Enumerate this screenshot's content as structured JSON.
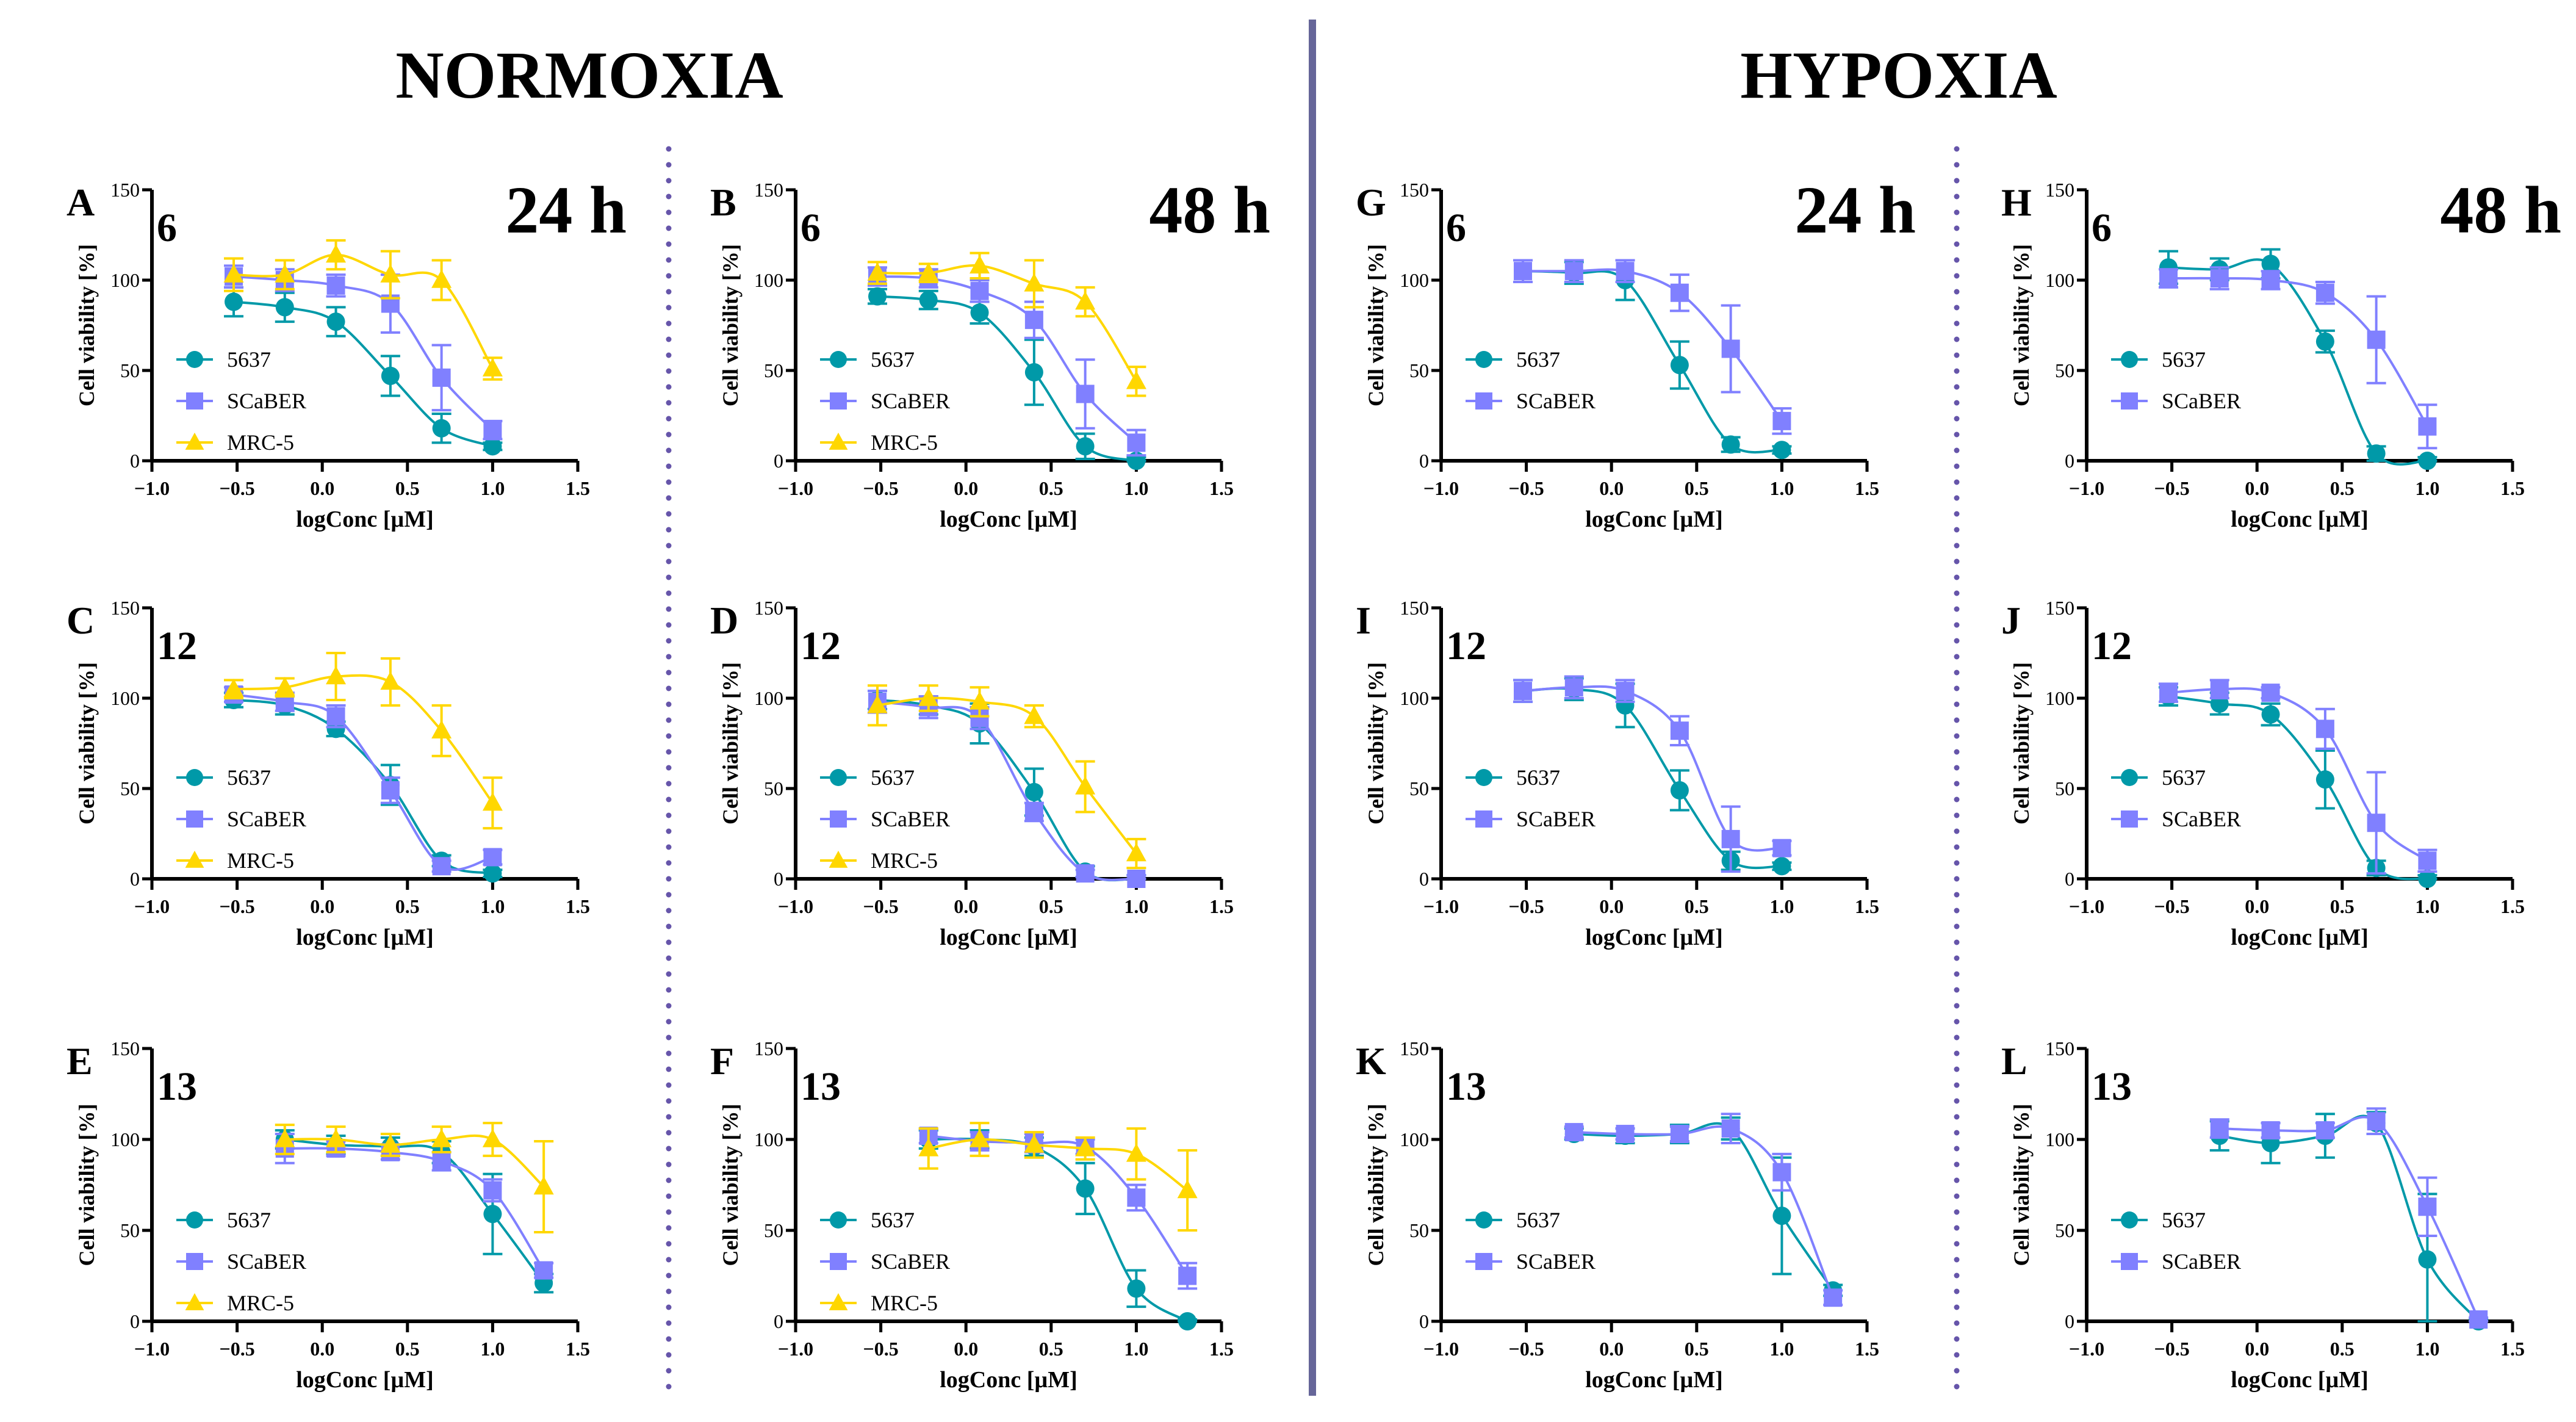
{
  "titles": {
    "normoxia": "NORMOXIA",
    "hypoxia": "HYPOXIA"
  },
  "colors": {
    "5637": "#0099A8",
    "SCaBER": "#8080FF",
    "MRC-5": "#FFD700",
    "separator": "#666699",
    "dots": "#6655AA"
  },
  "chart_data": [
    {
      "panel": "A",
      "compound": "6",
      "time": "24 h",
      "type": "line",
      "xlabel": "logConc [µM]",
      "ylabel": "Cell viability [%]",
      "xlim": [
        -1,
        1.5
      ],
      "ylim": [
        0,
        150
      ],
      "xticks": [
        "−1.0",
        "−0.5",
        "0.0",
        "0.5",
        "1.0",
        "1.5"
      ],
      "yticks": [
        "0",
        "50",
        "100",
        "150"
      ],
      "series": [
        {
          "name": "5637",
          "x": [
            -0.52,
            -0.22,
            0.08,
            0.4,
            0.7,
            1.0
          ],
          "y": [
            88,
            85,
            77,
            47,
            18,
            8
          ],
          "err": [
            8,
            8,
            8,
            11,
            8,
            2
          ]
        },
        {
          "name": "SCaBER",
          "x": [
            -0.52,
            -0.22,
            0.08,
            0.4,
            0.7,
            1.0
          ],
          "y": [
            102,
            100,
            97,
            87,
            46,
            17
          ],
          "err": [
            6,
            6,
            6,
            16,
            18,
            5
          ]
        },
        {
          "name": "MRC-5",
          "x": [
            -0.52,
            -0.22,
            0.08,
            0.4,
            0.7,
            1.0
          ],
          "y": [
            103,
            103,
            114,
            103,
            100,
            51
          ],
          "err": [
            9,
            8,
            8,
            13,
            11,
            6
          ]
        }
      ]
    },
    {
      "panel": "B",
      "compound": "6",
      "time": "48 h",
      "type": "line",
      "xlabel": "logConc [µM]",
      "ylabel": "Cell viability [%]",
      "xlim": [
        -1,
        1.5
      ],
      "ylim": [
        0,
        150
      ],
      "xticks": [
        "−1.0",
        "−0.5",
        "0.0",
        "0.5",
        "1.0",
        "1.5"
      ],
      "yticks": [
        "0",
        "50",
        "100",
        "150"
      ],
      "series": [
        {
          "name": "5637",
          "x": [
            -0.52,
            -0.22,
            0.08,
            0.4,
            0.7,
            1.0
          ],
          "y": [
            91,
            89,
            82,
            49,
            8,
            0
          ],
          "err": [
            4,
            5,
            6,
            18,
            7,
            2
          ]
        },
        {
          "name": "SCaBER",
          "x": [
            -0.52,
            -0.22,
            0.08,
            0.4,
            0.7,
            1.0
          ],
          "y": [
            102,
            101,
            94,
            78,
            37,
            10
          ],
          "err": [
            5,
            5,
            6,
            10,
            19,
            7
          ]
        },
        {
          "name": "MRC-5",
          "x": [
            -0.52,
            -0.22,
            0.08,
            0.4,
            0.7,
            1.0
          ],
          "y": [
            104,
            104,
            108,
            98,
            88,
            44
          ],
          "err": [
            6,
            5,
            7,
            13,
            8,
            8
          ]
        }
      ]
    },
    {
      "panel": "C",
      "compound": "12",
      "type": "line",
      "xlabel": "logConc [µM]",
      "ylabel": "Cell viability [%]",
      "xlim": [
        -1,
        1.5
      ],
      "ylim": [
        0,
        150
      ],
      "xticks": [
        "−1.0",
        "−0.5",
        "0.0",
        "0.5",
        "1.0",
        "1.5"
      ],
      "yticks": [
        "0",
        "50",
        "100",
        "150"
      ],
      "series": [
        {
          "name": "5637",
          "x": [
            -0.52,
            -0.22,
            0.08,
            0.4,
            0.7,
            1.0
          ],
          "y": [
            99,
            96,
            83,
            52,
            10,
            3
          ],
          "err": [
            4,
            5,
            4,
            11,
            3,
            2
          ]
        },
        {
          "name": "SCaBER",
          "x": [
            -0.52,
            -0.22,
            0.08,
            0.4,
            0.7,
            1.0
          ],
          "y": [
            102,
            98,
            90,
            49,
            7,
            12
          ],
          "err": [
            4,
            5,
            6,
            7,
            3,
            4
          ]
        },
        {
          "name": "MRC-5",
          "x": [
            -0.52,
            -0.22,
            0.08,
            0.4,
            0.7,
            1.0
          ],
          "y": [
            105,
            106,
            112,
            109,
            82,
            42
          ],
          "err": [
            5,
            5,
            13,
            13,
            14,
            14
          ]
        }
      ]
    },
    {
      "panel": "D",
      "compound": "12",
      "type": "line",
      "xlabel": "logConc [µM]",
      "ylabel": "Cell viability [%]",
      "xlim": [
        -1,
        1.5
      ],
      "ylim": [
        0,
        150
      ],
      "xticks": [
        "−1.0",
        "−0.5",
        "0.0",
        "0.5",
        "1.0",
        "1.5"
      ],
      "yticks": [
        "0",
        "50",
        "100",
        "150"
      ],
      "series": [
        {
          "name": "5637",
          "x": [
            -0.52,
            -0.22,
            0.08,
            0.4,
            0.7,
            1.0
          ],
          "y": [
            99,
            96,
            86,
            48,
            4,
            0
          ],
          "err": [
            5,
            5,
            11,
            13,
            3,
            2
          ]
        },
        {
          "name": "SCaBER",
          "x": [
            -0.52,
            -0.22,
            0.08,
            0.4,
            0.7,
            1.0
          ],
          "y": [
            98,
            95,
            89,
            37,
            3,
            0
          ],
          "err": [
            6,
            6,
            6,
            5,
            2,
            2
          ]
        },
        {
          "name": "MRC-5",
          "x": [
            -0.52,
            -0.22,
            0.08,
            0.4,
            0.7,
            1.0
          ],
          "y": [
            96,
            100,
            98,
            90,
            51,
            14
          ],
          "err": [
            11,
            7,
            8,
            6,
            14,
            8
          ]
        }
      ]
    },
    {
      "panel": "E",
      "compound": "13",
      "type": "line",
      "xlabel": "logConc [µM]",
      "ylabel": "Cell viability [%]",
      "xlim": [
        -1,
        1.5
      ],
      "ylim": [
        0,
        150
      ],
      "xticks": [
        "−1.0",
        "−0.5",
        "0.0",
        "0.5",
        "1.0",
        "1.5"
      ],
      "yticks": [
        "0",
        "50",
        "100",
        "150"
      ],
      "series": [
        {
          "name": "5637",
          "x": [
            -0.22,
            0.08,
            0.4,
            0.7,
            1.0,
            1.3
          ],
          "y": [
            100,
            97,
            96,
            93,
            59,
            21
          ],
          "err": [
            5,
            5,
            5,
            6,
            22,
            5
          ]
        },
        {
          "name": "SCaBER",
          "x": [
            -0.22,
            0.08,
            0.4,
            0.7,
            1.0,
            1.3
          ],
          "y": [
            95,
            95,
            93,
            88,
            72,
            28
          ],
          "err": [
            8,
            4,
            4,
            5,
            6,
            4
          ]
        },
        {
          "name": "MRC-5",
          "x": [
            -0.22,
            0.08,
            0.4,
            0.7,
            1.0,
            1.3
          ],
          "y": [
            100,
            100,
            97,
            100,
            100,
            74
          ],
          "err": [
            8,
            7,
            6,
            7,
            9,
            25
          ]
        }
      ]
    },
    {
      "panel": "F",
      "compound": "13",
      "type": "line",
      "xlabel": "logConc [µM]",
      "ylabel": "Cell viability [%]",
      "xlim": [
        -1,
        1.5
      ],
      "ylim": [
        0,
        150
      ],
      "xticks": [
        "−1.0",
        "−0.5",
        "0.0",
        "0.5",
        "1.0",
        "1.5"
      ],
      "yticks": [
        "0",
        "50",
        "100",
        "150"
      ],
      "series": [
        {
          "name": "5637",
          "x": [
            -0.22,
            0.08,
            0.4,
            0.7,
            1.0,
            1.3
          ],
          "y": [
            100,
            100,
            96,
            73,
            18,
            0
          ],
          "err": [
            5,
            5,
            5,
            14,
            10,
            1
          ]
        },
        {
          "name": "SCaBER",
          "x": [
            -0.22,
            0.08,
            0.4,
            0.7,
            1.0,
            1.3
          ],
          "y": [
            102,
            99,
            98,
            96,
            68,
            25
          ],
          "err": [
            4,
            5,
            5,
            4,
            7,
            7
          ]
        },
        {
          "name": "MRC-5",
          "x": [
            -0.22,
            0.08,
            0.4,
            0.7,
            1.0,
            1.3
          ],
          "y": [
            95,
            100,
            97,
            95,
            92,
            72
          ],
          "err": [
            11,
            9,
            7,
            6,
            14,
            22
          ]
        }
      ]
    },
    {
      "panel": "G",
      "compound": "6",
      "time": "24 h",
      "type": "line",
      "xlabel": "logConc [µM]",
      "ylabel": "Cell viability [%]",
      "xlim": [
        -1,
        1.5
      ],
      "ylim": [
        0,
        150
      ],
      "xticks": [
        "−1.0",
        "−0.5",
        "0.0",
        "0.5",
        "1.0",
        "1.5"
      ],
      "yticks": [
        "0",
        "50",
        "100",
        "150"
      ],
      "series": [
        {
          "name": "5637",
          "x": [
            -0.52,
            -0.22,
            0.08,
            0.4,
            0.7,
            1.0
          ],
          "y": [
            105,
            104,
            100,
            53,
            9,
            6
          ],
          "err": [
            6,
            6,
            11,
            13,
            4,
            2
          ]
        },
        {
          "name": "SCaBER",
          "x": [
            -0.52,
            -0.22,
            0.08,
            0.4,
            0.7,
            1.0
          ],
          "y": [
            105,
            105,
            105,
            93,
            62,
            22
          ],
          "err": [
            6,
            6,
            6,
            10,
            24,
            7
          ]
        }
      ]
    },
    {
      "panel": "H",
      "compound": "6",
      "time": "48 h",
      "type": "line",
      "xlabel": "logConc [µM]",
      "ylabel": "Cell viability [%]",
      "xlim": [
        -1,
        1.5
      ],
      "ylim": [
        0,
        150
      ],
      "xticks": [
        "−1.0",
        "−0.5",
        "0.0",
        "0.5",
        "1.0",
        "1.5"
      ],
      "yticks": [
        "0",
        "50",
        "100",
        "150"
      ],
      "series": [
        {
          "name": "5637",
          "x": [
            -0.52,
            -0.22,
            0.08,
            0.4,
            0.7,
            1.0
          ],
          "y": [
            107,
            106,
            109,
            66,
            4,
            0
          ],
          "err": [
            9,
            6,
            8,
            6,
            4,
            2
          ]
        },
        {
          "name": "SCaBER",
          "x": [
            -0.52,
            -0.22,
            0.08,
            0.4,
            0.7,
            1.0
          ],
          "y": [
            101,
            101,
            100,
            93,
            67,
            19
          ],
          "err": [
            5,
            6,
            5,
            6,
            24,
            12
          ]
        }
      ]
    },
    {
      "panel": "I",
      "compound": "12",
      "type": "line",
      "xlabel": "logConc [µM]",
      "ylabel": "Cell viability [%]",
      "xlim": [
        -1,
        1.5
      ],
      "ylim": [
        0,
        150
      ],
      "xticks": [
        "−1.0",
        "−0.5",
        "0.0",
        "0.5",
        "1.0",
        "1.5"
      ],
      "yticks": [
        "0",
        "50",
        "100",
        "150"
      ],
      "series": [
        {
          "name": "5637",
          "x": [
            -0.52,
            -0.22,
            0.08,
            0.4,
            0.7,
            1.0
          ],
          "y": [
            104,
            105,
            96,
            49,
            10,
            7
          ],
          "err": [
            6,
            6,
            12,
            11,
            5,
            2
          ]
        },
        {
          "name": "SCaBER",
          "x": [
            -0.52,
            -0.22,
            0.08,
            0.4,
            0.7,
            1.0
          ],
          "y": [
            104,
            106,
            104,
            82,
            22,
            17
          ],
          "err": [
            6,
            6,
            6,
            8,
            18,
            4
          ]
        }
      ]
    },
    {
      "panel": "J",
      "compound": "12",
      "type": "line",
      "xlabel": "logConc [µM]",
      "ylabel": "Cell viability [%]",
      "xlim": [
        -1,
        1.5
      ],
      "ylim": [
        0,
        150
      ],
      "xticks": [
        "−1.0",
        "−0.5",
        "0.0",
        "0.5",
        "1.0",
        "1.5"
      ],
      "yticks": [
        "0",
        "50",
        "100",
        "150"
      ],
      "series": [
        {
          "name": "5637",
          "x": [
            -0.52,
            -0.22,
            0.08,
            0.4,
            0.7,
            1.0
          ],
          "y": [
            101,
            97,
            91,
            55,
            6,
            0
          ],
          "err": [
            5,
            6,
            6,
            16,
            4,
            2
          ]
        },
        {
          "name": "SCaBER",
          "x": [
            -0.52,
            -0.22,
            0.08,
            0.4,
            0.7,
            1.0
          ],
          "y": [
            103,
            105,
            103,
            83,
            31,
            10
          ],
          "err": [
            5,
            5,
            3,
            11,
            28,
            6
          ]
        }
      ]
    },
    {
      "panel": "K",
      "compound": "13",
      "type": "line",
      "xlabel": "logConc [µM]",
      "ylabel": "Cell viability [%]",
      "xlim": [
        -1,
        1.5
      ],
      "ylim": [
        0,
        150
      ],
      "xticks": [
        "−1.0",
        "−0.5",
        "0.0",
        "0.5",
        "1.0",
        "1.5"
      ],
      "yticks": [
        "0",
        "50",
        "100",
        "150"
      ],
      "series": [
        {
          "name": "5637",
          "x": [
            -0.22,
            0.08,
            0.4,
            0.7,
            1.0,
            1.3
          ],
          "y": [
            103,
            102,
            103,
            106,
            58,
            17
          ],
          "err": [
            3,
            4,
            5,
            6,
            32,
            3
          ]
        },
        {
          "name": "SCaBER",
          "x": [
            -0.22,
            0.08,
            0.4,
            0.7,
            1.0,
            1.3
          ],
          "y": [
            104,
            103,
            103,
            106,
            82,
            13
          ],
          "err": [
            3,
            3,
            4,
            8,
            10,
            4
          ]
        }
      ]
    },
    {
      "panel": "L",
      "compound": "13",
      "type": "line",
      "xlabel": "logConc [µM]",
      "ylabel": "Cell viability [%]",
      "xlim": [
        -1,
        1.5
      ],
      "ylim": [
        0,
        150
      ],
      "xticks": [
        "−1.0",
        "−0.5",
        "0.0",
        "0.5",
        "1.0",
        "1.5"
      ],
      "yticks": [
        "0",
        "50",
        "100",
        "150"
      ],
      "series": [
        {
          "name": "5637",
          "x": [
            -0.22,
            0.08,
            0.4,
            0.7,
            1.0,
            1.3
          ],
          "y": [
            102,
            98,
            102,
            109,
            34,
            0
          ],
          "err": [
            8,
            11,
            12,
            6,
            36,
            1
          ]
        },
        {
          "name": "SCaBER",
          "x": [
            -0.22,
            0.08,
            0.4,
            0.7,
            1.0,
            1.3
          ],
          "y": [
            106,
            105,
            105,
            110,
            63,
            1
          ],
          "err": [
            5,
            4,
            4,
            7,
            16,
            1
          ]
        }
      ]
    }
  ]
}
